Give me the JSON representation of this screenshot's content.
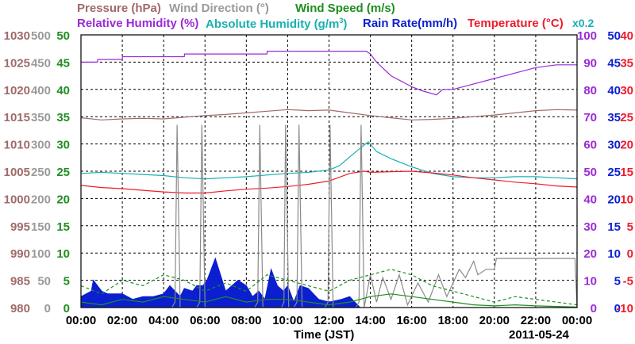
{
  "chart_data": {
    "type": "line",
    "header": {
      "row1": [
        {
          "key": "pressure",
          "text": "Pressure (hPa)",
          "color": "#a06a6a"
        },
        {
          "key": "wind_dir",
          "text": "Wind Direction (°)",
          "color": "#9a9a9a"
        },
        {
          "key": "wind_speed",
          "text": "Wind Speed (m/s)",
          "color": "#1f8f1f"
        }
      ],
      "row2": [
        {
          "key": "rh",
          "text": "Relative Humidity (%)",
          "color": "#9a2ad6"
        },
        {
          "key": "ah",
          "text": "Absolute Humidity (g/m",
          "sup": "3",
          "tail": ")",
          "color": "#19b0b0"
        },
        {
          "key": "rain",
          "text": "Rain Rate(mm/h)",
          "color": "#0b1fd1"
        },
        {
          "key": "temp",
          "text": "Temperature (°C)",
          "color": "#ee1c2b"
        }
      ],
      "x02": {
        "text": "x0.2",
        "color": "#19b0b0"
      }
    },
    "xlabel": "Time (JST)",
    "date": "2011-05-24",
    "x_ticks": [
      "00:00",
      "02:00",
      "04:00",
      "06:00",
      "08:00",
      "10:00",
      "12:00",
      "14:00",
      "16:00",
      "18:00",
      "20:00",
      "22:00",
      "00:00"
    ],
    "xlim": [
      0,
      24
    ],
    "axes": {
      "pressure": {
        "ticks": [
          "1030",
          "1025",
          "1020",
          "1015",
          "1010",
          "1005",
          "1000",
          "995",
          "990",
          "985",
          "980"
        ],
        "color": "#a06a6a",
        "ylim": [
          980,
          1030
        ]
      },
      "wind_dir": {
        "ticks": [
          "500",
          "450",
          "400",
          "350",
          "300",
          "250",
          "200",
          "150",
          "100",
          "50",
          "0"
        ],
        "color": "#9a9a9a",
        "ylim": [
          0,
          500
        ]
      },
      "wind_speed": {
        "ticks": [
          "50",
          "45",
          "40",
          "35",
          "30",
          "25",
          "20",
          "15",
          "10",
          "5",
          "0"
        ],
        "color": "#1f8f1f",
        "ylim": [
          0,
          50
        ]
      },
      "rh": {
        "ticks": [
          "100",
          "90",
          "80",
          "70",
          "60",
          "50",
          "40",
          "30",
          "20",
          "10",
          "0"
        ],
        "color": "#9a2ad6",
        "ylim": [
          0,
          100
        ]
      },
      "rain": {
        "ticks": [
          "50",
          "45",
          "40",
          "35",
          "30",
          "25",
          "20",
          "15",
          "10",
          "5",
          "0"
        ],
        "color": "#0b1fd1",
        "ylim": [
          0,
          50
        ]
      },
      "temp": {
        "ticks": [
          "40",
          "35",
          "30",
          "25",
          "20",
          "15",
          "10",
          "5",
          "0",
          "-5",
          "-10"
        ],
        "color": "#ee1c2b",
        "ylim": [
          -10,
          40
        ]
      }
    },
    "grid": true,
    "series": [
      {
        "name": "Relative Humidity",
        "axis": "rh",
        "color": "#9a2ad6",
        "style": "solid",
        "x": [
          0,
          0.8,
          0.81,
          2,
          2.01,
          5,
          5.01,
          9,
          9.01,
          13,
          13.8,
          14,
          14.3,
          15,
          16,
          16.5,
          17.2,
          17.5,
          18,
          19,
          20,
          21,
          22,
          23,
          24
        ],
        "y": [
          90,
          90,
          91,
          91,
          92,
          92,
          93,
          93,
          94,
          94,
          94,
          93,
          90,
          85,
          81,
          79.5,
          78,
          80,
          80,
          82,
          84,
          86,
          88,
          89,
          89
        ]
      },
      {
        "name": "Pressure",
        "axis": "pressure",
        "color": "#a06a6a",
        "style": "solid",
        "x": [
          0,
          1,
          2,
          3,
          4,
          5,
          6,
          7,
          8,
          9,
          10,
          11,
          12,
          13,
          14,
          15,
          16,
          17,
          18,
          19,
          20,
          21,
          22,
          23,
          24
        ],
        "y": [
          1014.8,
          1014.4,
          1014.6,
          1014.7,
          1014.6,
          1014.9,
          1015.2,
          1015.4,
          1015.7,
          1016,
          1016.3,
          1016.1,
          1016.2,
          1015.7,
          1015.2,
          1014.8,
          1014.4,
          1014.5,
          1014.7,
          1015,
          1015.3,
          1015.7,
          1016.1,
          1016.3,
          1016.2
        ]
      },
      {
        "name": "Absolute Humidity",
        "axis": "ah",
        "color": "#19b0b0",
        "style": "solid",
        "x": [
          0,
          1,
          2,
          3,
          4,
          5,
          6,
          7,
          8,
          9,
          10,
          11,
          12,
          12.5,
          13,
          13.5,
          13.9,
          14.3,
          15,
          16,
          17,
          18,
          19,
          20,
          21,
          22,
          23,
          24
        ],
        "y": [
          24.6,
          24.8,
          24.6,
          24.4,
          24.2,
          23.8,
          23.6,
          23.8,
          24,
          24.3,
          24.6,
          24.8,
          25.2,
          26,
          27.6,
          29.2,
          30.4,
          28.6,
          27.3,
          25.8,
          24.6,
          24,
          23.8,
          23.8,
          24,
          24,
          23.8,
          23.6
        ]
      },
      {
        "name": "Temperature",
        "axis": "temp",
        "color": "#ee1c2b",
        "style": "solid",
        "x": [
          0,
          1,
          2,
          3,
          4,
          5,
          6,
          7,
          8,
          9,
          10,
          11,
          12,
          13,
          13.7,
          14,
          15,
          16,
          17,
          18,
          19,
          20,
          21,
          22,
          23,
          24
        ],
        "y": [
          12.4,
          12,
          11.8,
          11.5,
          11.2,
          11,
          11,
          11.4,
          11.7,
          11.9,
          12.2,
          12.6,
          13.2,
          14.6,
          15,
          14.8,
          14.9,
          15,
          14.7,
          14.3,
          13.8,
          13.4,
          13,
          12.7,
          12.3,
          12.1
        ]
      },
      {
        "name": "Wind Direction",
        "axis": "wind_dir",
        "color": "#8a8a8a",
        "style": "solid",
        "x": [
          0,
          4.4,
          4.55,
          4.65,
          4.8,
          5.6,
          5.75,
          5.85,
          6,
          8.4,
          8.55,
          8.65,
          8.8,
          9.7,
          9.82,
          9.9,
          10.05,
          10.3,
          10.45,
          10.55,
          10.7,
          11.8,
          11.95,
          12.05,
          12.2,
          13.3,
          13.45,
          13.55,
          13.7,
          14,
          14.3,
          14.6,
          15,
          15.4,
          15.8,
          16.3,
          16.8,
          17.3,
          17.7,
          18,
          18.3,
          18.6,
          19,
          19.2,
          19.6,
          20,
          20.1,
          20.5,
          21,
          22,
          23,
          23.9,
          24
        ],
        "y": [
          0,
          0,
          10,
          335,
          0,
          0,
          10,
          335,
          0,
          0,
          10,
          335,
          0,
          0,
          10,
          335,
          0,
          0,
          10,
          335,
          0,
          0,
          10,
          335,
          0,
          0,
          10,
          335,
          0,
          60,
          10,
          55,
          15,
          60,
          5,
          45,
          10,
          60,
          20,
          45,
          70,
          55,
          85,
          60,
          70,
          70,
          90,
          90,
          90,
          90,
          90,
          90,
          0
        ]
      },
      {
        "name": "Wind Speed",
        "axis": "wind_speed",
        "color": "#1f8f1f",
        "style": "dashed",
        "x": [
          0,
          1,
          2,
          3,
          4,
          5,
          6,
          7,
          8,
          9,
          10,
          11,
          12,
          13,
          14,
          15,
          16,
          17,
          18,
          19,
          20,
          21,
          22,
          23,
          24
        ],
        "y": [
          4,
          2.5,
          5,
          4,
          6,
          5,
          3,
          4.5,
          3,
          6,
          5,
          4,
          3,
          5,
          6,
          7,
          6,
          4,
          3,
          2,
          1,
          2,
          1.5,
          1,
          0.5
        ]
      },
      {
        "name": "Wind Speed",
        "axis": "wind_speed",
        "color": "#1f8f1f",
        "style": "solid",
        "x": [
          0,
          1,
          2,
          3,
          4,
          5,
          6,
          7,
          8,
          9,
          10,
          11,
          12,
          13,
          14,
          15,
          16,
          17,
          18,
          19,
          20,
          21,
          22,
          23,
          24
        ],
        "y": [
          1,
          0.5,
          1.5,
          1,
          2,
          1.5,
          1,
          2,
          1,
          1.5,
          1.5,
          1,
          0.5,
          1,
          2,
          2.5,
          2,
          1.5,
          1,
          0.5,
          0.3,
          0.5,
          0.3,
          0.2,
          0.1
        ]
      }
    ],
    "rain_rate": {
      "axis": "rain",
      "color": "#0b1fd1",
      "x": [
        0,
        0.5,
        0.6,
        1,
        1.3,
        2,
        2.5,
        3,
        3.5,
        4,
        4.3,
        4.8,
        5,
        5.4,
        5.6,
        5.9,
        6.1,
        6.5,
        7,
        7.3,
        7.6,
        8,
        8.3,
        8.6,
        8.9,
        9.2,
        9.5,
        9.8,
        10,
        10.3,
        10.6,
        11,
        11.5,
        12,
        12.6,
        13,
        13.5,
        14,
        24
      ],
      "y": [
        2,
        3,
        5,
        3,
        2.5,
        2.5,
        1.5,
        2,
        2,
        2.5,
        4,
        2,
        3.5,
        3,
        4,
        4,
        5,
        9,
        3,
        4,
        5,
        4,
        2,
        3,
        1.5,
        7,
        4,
        3,
        4,
        1,
        4,
        3.5,
        1.5,
        1,
        1.5,
        2,
        0,
        0,
        0
      ]
    }
  }
}
